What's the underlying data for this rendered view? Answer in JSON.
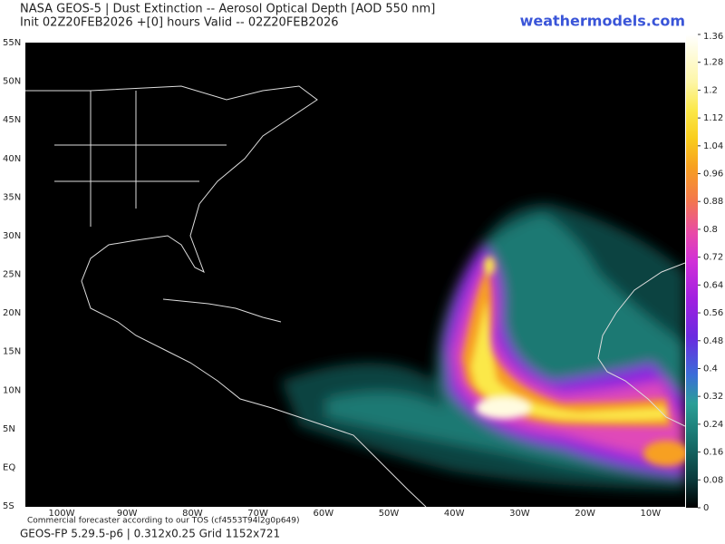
{
  "header": {
    "title_line1": "NASA GEOS-5 | Dust Extinction -- Aerosol Optical Depth [AOD 550 nm]",
    "title_line2": "Init 02Z20FEB2026 +[0] hours Valid -- 02Z20FEB2026",
    "brand": "weathermodels.com"
  },
  "map": {
    "lat_labels": [
      "55N",
      "50N",
      "45N",
      "40N",
      "35N",
      "30N",
      "25N",
      "20N",
      "15N",
      "10N",
      "5N",
      "EQ",
      "5S"
    ],
    "lon_labels": [
      "100W",
      "90W",
      "80W",
      "70W",
      "60W",
      "50W",
      "40W",
      "30W",
      "20W",
      "10W"
    ]
  },
  "colorbar": {
    "range": [
      0,
      1.36
    ],
    "ticks": [
      0,
      0.08,
      0.16,
      0.24,
      0.32,
      0.4,
      0.48,
      0.56,
      0.64,
      0.72,
      0.8,
      0.88,
      0.96,
      1.04,
      1.12,
      1.2,
      1.28,
      1.36
    ]
  },
  "footer": {
    "notice": "Commercial forecaster according to our TOS (cf4553T94l2g0p649)",
    "model": "GEOS-FP 5.29.5-p6 | 0.312x0.25 Grid 1152x721"
  }
}
